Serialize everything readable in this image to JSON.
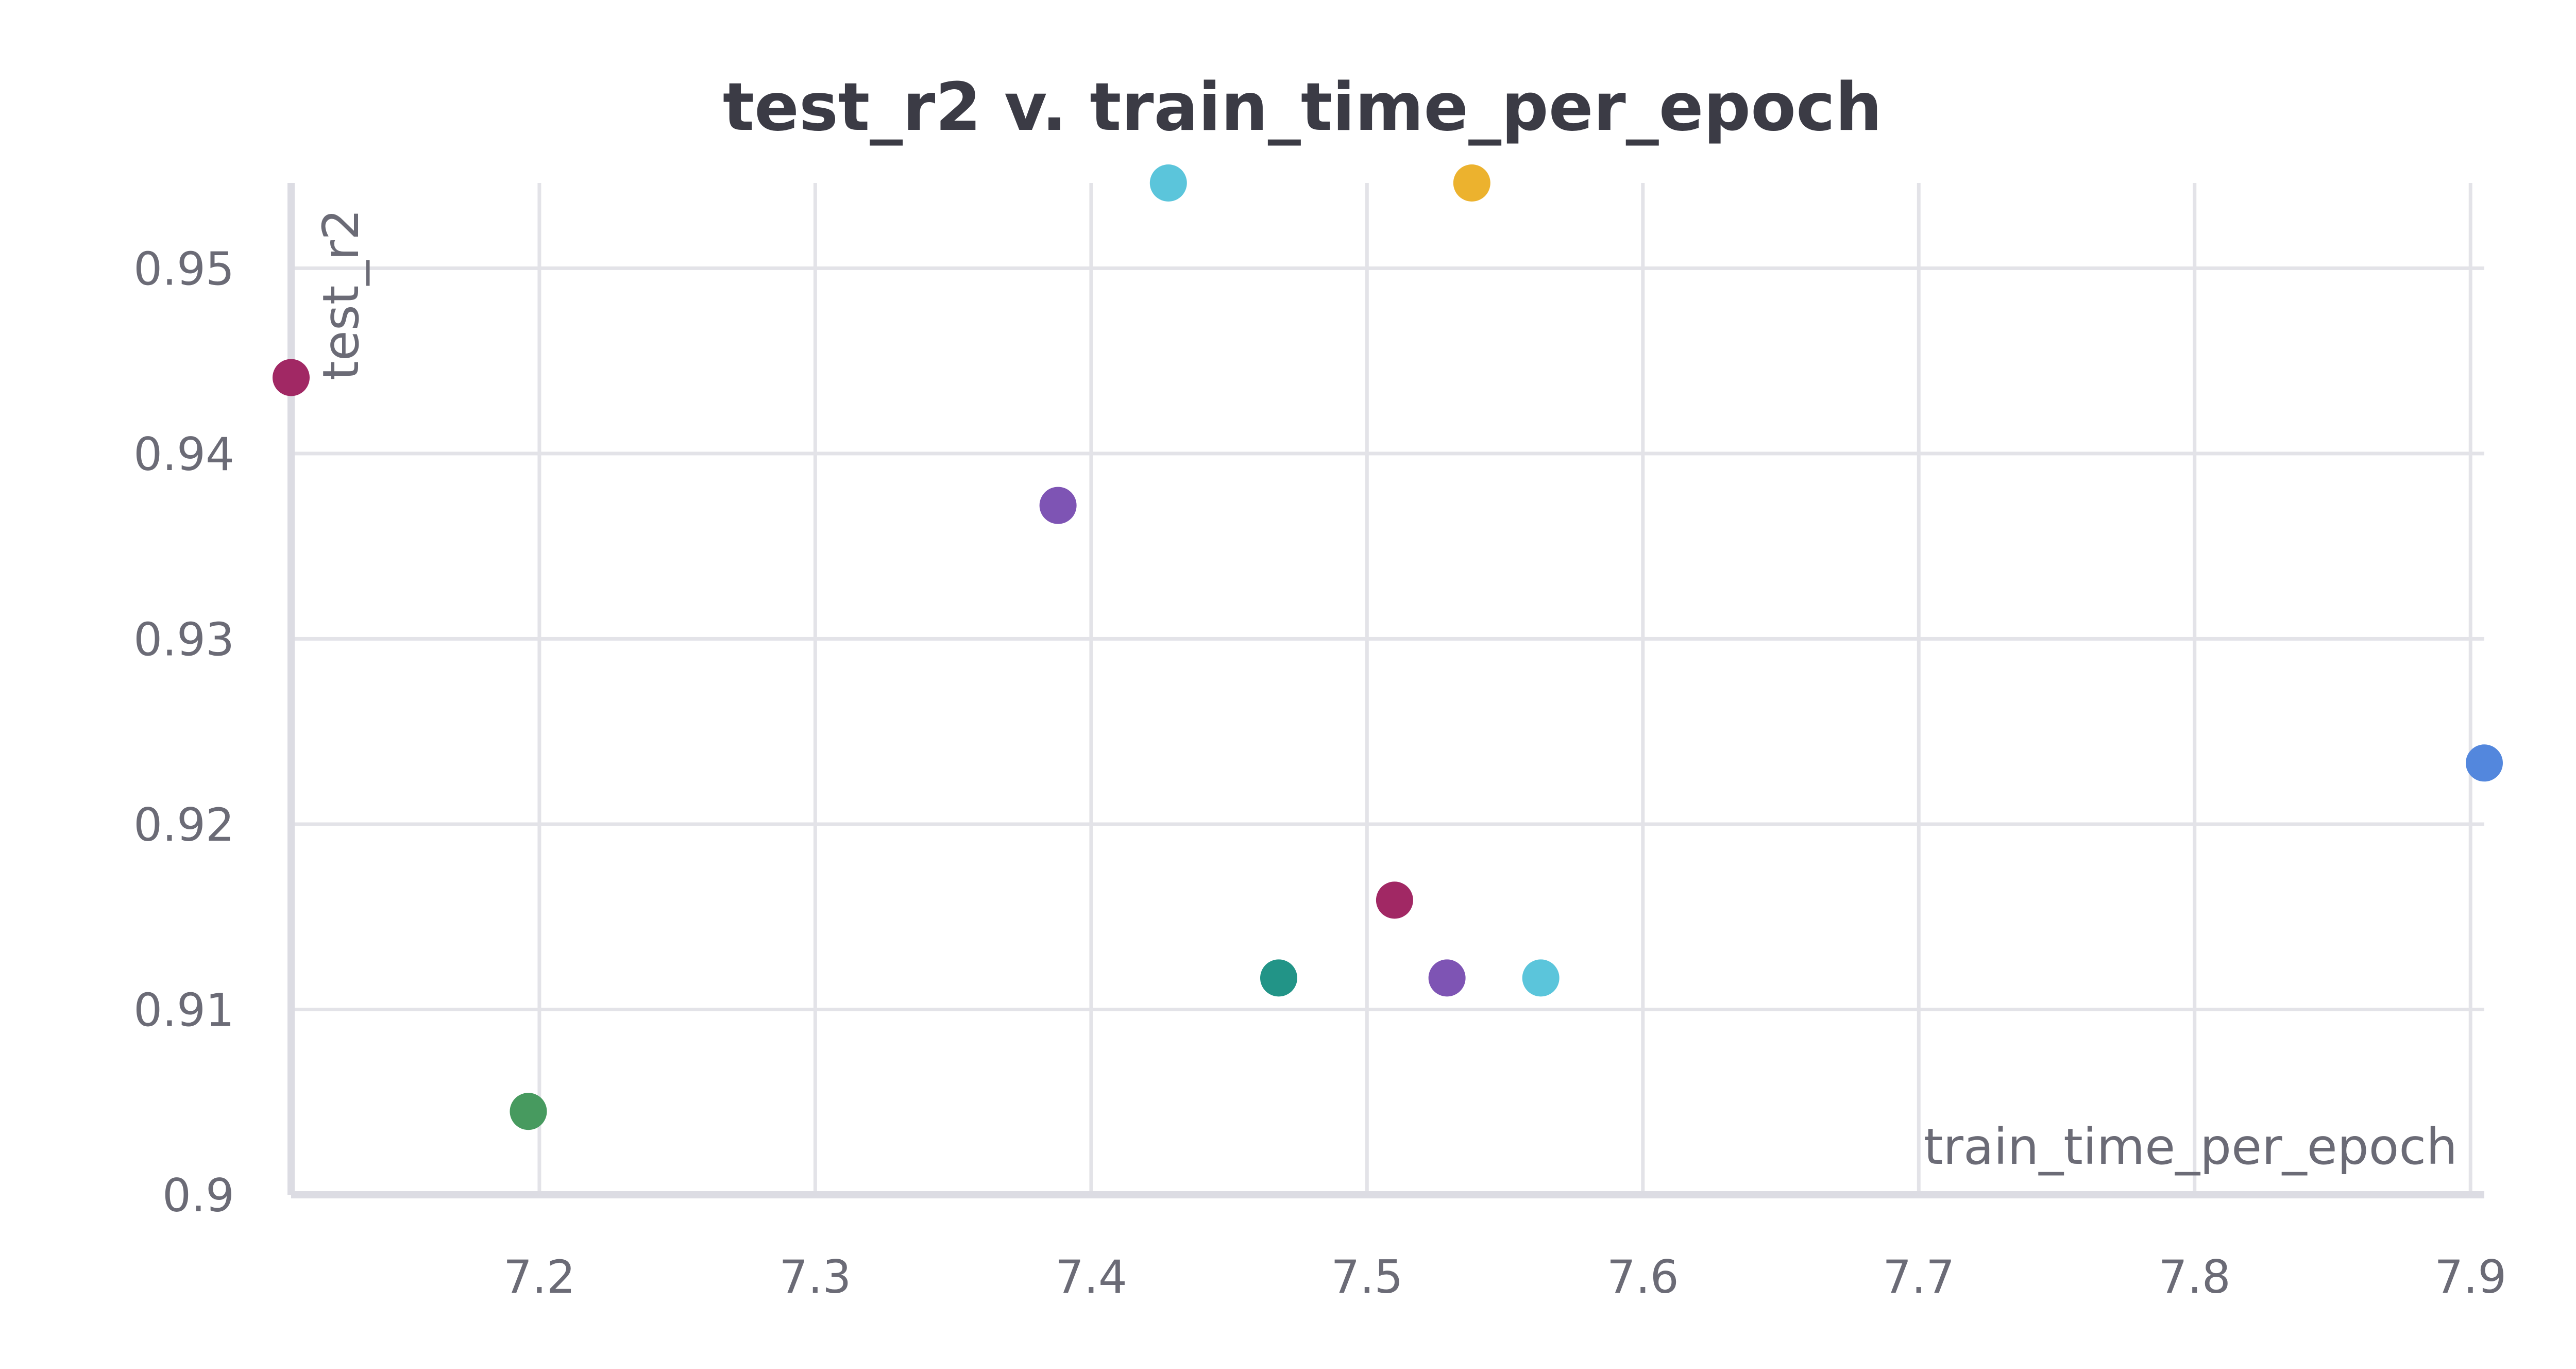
{
  "chart_data": {
    "type": "scatter",
    "title": "test_r2 v. train_time_per_epoch",
    "xlabel": "train_time_per_epoch",
    "ylabel": "test_r2",
    "xlim": [
      7.11,
      7.905
    ],
    "ylim": [
      0.9,
      0.9546
    ],
    "x_ticks": [
      7.2,
      7.3,
      7.4,
      7.5,
      7.6,
      7.7,
      7.8,
      7.9
    ],
    "x_tick_labels": [
      "7.2",
      "7.3",
      "7.4",
      "7.5",
      "7.6",
      "7.7",
      "7.8",
      "7.9"
    ],
    "y_ticks": [
      0.9,
      0.91,
      0.92,
      0.93,
      0.94,
      0.95
    ],
    "y_tick_labels": [
      "0.9",
      "0.91",
      "0.92",
      "0.93",
      "0.94",
      "0.95"
    ],
    "grid": true,
    "points": [
      {
        "x": 7.428,
        "y": 0.9546,
        "color": "#5bc5db"
      },
      {
        "x": 7.538,
        "y": 0.9546,
        "color": "#ecb22e"
      },
      {
        "x": 7.11,
        "y": 0.9441,
        "color": "#a12864"
      },
      {
        "x": 7.388,
        "y": 0.9372,
        "color": "#7e54b4"
      },
      {
        "x": 7.905,
        "y": 0.9233,
        "color": "#5387dd"
      },
      {
        "x": 7.51,
        "y": 0.9159,
        "color": "#a12864"
      },
      {
        "x": 7.468,
        "y": 0.9117,
        "color": "#229487"
      },
      {
        "x": 7.529,
        "y": 0.9117,
        "color": "#7e54b4"
      },
      {
        "x": 7.563,
        "y": 0.9117,
        "color": "#5bc5db"
      },
      {
        "x": 7.196,
        "y": 0.9045,
        "color": "#479a5f"
      }
    ]
  }
}
